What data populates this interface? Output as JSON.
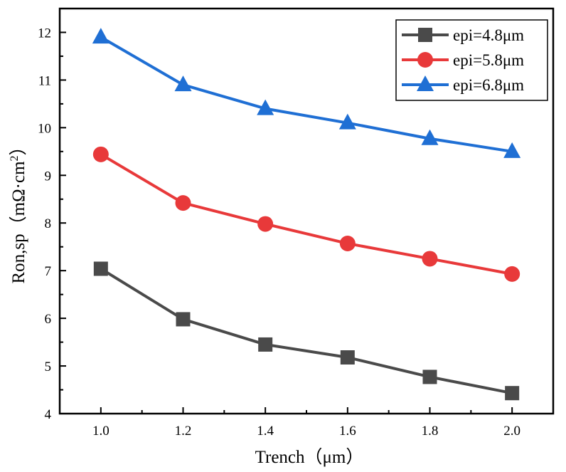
{
  "chart_data": {
    "type": "line",
    "xlabel": "Trench（μm）",
    "ylabel_main": "Ron,sp（mΩ·cm",
    "ylabel_sup": "2",
    "ylabel_close": "）",
    "x": [
      1.0,
      1.2,
      1.4,
      1.6,
      1.8,
      2.0
    ],
    "xticks": [
      "1.0",
      "1.2",
      "1.4",
      "1.6",
      "1.8",
      "2.0"
    ],
    "yticks": [
      "4",
      "5",
      "6",
      "7",
      "8",
      "9",
      "10",
      "11",
      "12"
    ],
    "xlim": [
      0.9,
      2.1
    ],
    "ylim": [
      4,
      12.5
    ],
    "grid": false,
    "legend_position": "top-right",
    "series": [
      {
        "name": "epi=4.8μm",
        "color": "#4a4a4a",
        "marker": "square",
        "values": [
          7.04,
          5.98,
          5.45,
          5.18,
          4.77,
          4.43
        ]
      },
      {
        "name": "epi=5.8μm",
        "color": "#e8393a",
        "marker": "circle",
        "values": [
          9.44,
          8.42,
          7.98,
          7.57,
          7.25,
          6.93
        ]
      },
      {
        "name": "epi=6.8μm",
        "color": "#1f6fd4",
        "marker": "triangle",
        "values": [
          11.9,
          10.9,
          10.4,
          10.1,
          9.77,
          9.5
        ]
      }
    ]
  }
}
